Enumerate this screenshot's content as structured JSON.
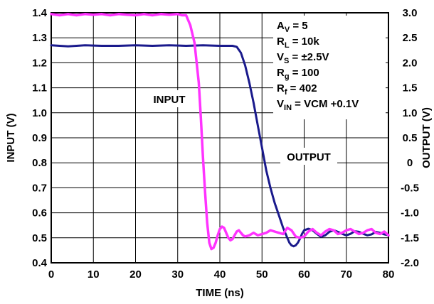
{
  "chart_data": {
    "type": "line",
    "xlabel": "TIME (ns)",
    "ylabel_left": "INPUT (V)",
    "ylabel_right": "OUTPUT (V)",
    "xlim": [
      0,
      80
    ],
    "ylim_left": [
      0.4,
      1.4
    ],
    "ylim_right": [
      -2.0,
      3.0
    ],
    "x_ticks": [
      "0",
      "10",
      "20",
      "30",
      "40",
      "50",
      "60",
      "70",
      "80"
    ],
    "y_ticks_left": [
      "0.4",
      "0.5",
      "0.6",
      "0.7",
      "0.8",
      "0.9",
      "1.0",
      "1.1",
      "1.2",
      "1.3",
      "1.4"
    ],
    "y_ticks_right": [
      "-2.0",
      "-1.5",
      "-1.0",
      "-0.5",
      "0",
      "0.5",
      "1.0",
      "1.5",
      "2.0",
      "2.5",
      "3.0"
    ],
    "grid": true,
    "series": [
      {
        "name": "INPUT",
        "axis": "left",
        "color": "#ff33ff",
        "x": [
          0,
          2,
          4,
          6,
          8,
          10,
          12,
          14,
          16,
          18,
          20,
          22,
          24,
          26,
          28,
          30,
          31,
          32,
          33,
          34,
          35,
          35.5,
          36,
          36.5,
          37,
          37.5,
          38,
          38.5,
          39,
          39.5,
          40,
          40.5,
          41,
          41.5,
          42,
          42.5,
          43,
          43.5,
          44,
          44.5,
          45,
          45.5,
          46,
          47,
          48,
          49,
          50,
          51,
          52,
          53,
          54,
          55,
          56,
          57,
          58,
          59,
          60,
          61,
          62,
          63,
          64,
          65,
          66,
          67,
          68,
          69,
          70,
          71,
          72,
          73,
          74,
          75,
          76,
          77,
          78,
          79,
          80
        ],
        "values": [
          1.395,
          1.39,
          1.395,
          1.39,
          1.395,
          1.392,
          1.395,
          1.39,
          1.395,
          1.392,
          1.39,
          1.395,
          1.39,
          1.395,
          1.392,
          1.395,
          1.39,
          1.39,
          1.35,
          1.28,
          1.12,
          0.98,
          0.82,
          0.68,
          0.56,
          0.48,
          0.455,
          0.46,
          0.48,
          0.51,
          0.535,
          0.545,
          0.54,
          0.52,
          0.5,
          0.49,
          0.495,
          0.51,
          0.525,
          0.53,
          0.52,
          0.51,
          0.505,
          0.51,
          0.52,
          0.51,
          0.515,
          0.52,
          0.53,
          0.525,
          0.52,
          0.515,
          0.54,
          0.53,
          0.505,
          0.5,
          0.505,
          0.525,
          0.535,
          0.52,
          0.51,
          0.525,
          0.535,
          0.53,
          0.515,
          0.52,
          0.53,
          0.535,
          0.525,
          0.515,
          0.52,
          0.53,
          0.535,
          0.52,
          0.515,
          0.525,
          0.51
        ]
      },
      {
        "name": "OUTPUT",
        "axis": "right",
        "color": "#1a1a8c",
        "x": [
          0,
          4,
          8,
          12,
          16,
          20,
          24,
          28,
          32,
          36,
          40,
          43,
          44,
          45,
          46,
          47,
          48,
          49,
          50,
          51,
          52,
          53,
          54,
          55,
          56,
          56.5,
          57,
          57.5,
          58,
          58.5,
          59,
          59.5,
          60,
          61,
          62,
          63,
          64,
          65,
          66,
          67,
          68,
          69,
          70,
          71,
          72,
          73,
          74,
          75,
          76,
          77,
          78,
          79,
          80
        ],
        "values": [
          2.35,
          2.33,
          2.35,
          2.34,
          2.34,
          2.35,
          2.34,
          2.35,
          2.34,
          2.35,
          2.34,
          2.34,
          2.32,
          2.2,
          1.95,
          1.6,
          1.2,
          0.75,
          0.3,
          -0.15,
          -0.5,
          -0.8,
          -1.05,
          -1.3,
          -1.5,
          -1.6,
          -1.65,
          -1.67,
          -1.65,
          -1.6,
          -1.52,
          -1.42,
          -1.35,
          -1.32,
          -1.35,
          -1.42,
          -1.48,
          -1.45,
          -1.38,
          -1.35,
          -1.38,
          -1.42,
          -1.45,
          -1.42,
          -1.37,
          -1.38,
          -1.42,
          -1.45,
          -1.43,
          -1.38,
          -1.4,
          -1.43,
          -1.45
        ]
      }
    ],
    "annotations": [
      {
        "main": "A",
        "sub": "V",
        "rest": " = 5"
      },
      {
        "main": "R",
        "sub": "L",
        "rest": " = 10k"
      },
      {
        "main": "V",
        "sub": "S",
        "rest": " = ±2.5V"
      },
      {
        "main": "R",
        "sub": "g",
        "rest": " = 100"
      },
      {
        "main": "R",
        "sub": "f",
        "rest": " = 402"
      },
      {
        "main": "V",
        "sub": "IN",
        "rest": " = VCM +0.1V"
      }
    ],
    "series_labels": [
      {
        "series": "INPUT",
        "text": "INPUT"
      },
      {
        "series": "OUTPUT",
        "text": "OUTPUT"
      }
    ]
  }
}
